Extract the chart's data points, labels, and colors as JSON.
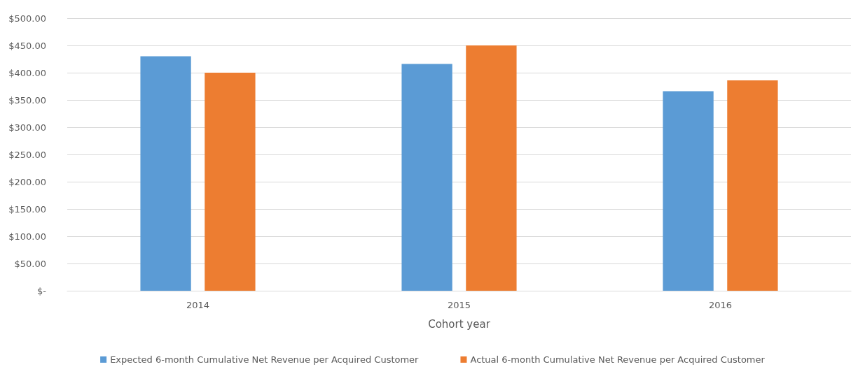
{
  "chart_data": {
    "type": "bar",
    "xlabel": "Cohort year",
    "categories": [
      "2014",
      "2015",
      "2016"
    ],
    "series": [
      {
        "name": "Expected 6-month Cumulative Net Revenue per Acquired Customer",
        "color": "#5b9bd5",
        "values": [
          430,
          416,
          366
        ]
      },
      {
        "name": "Actual 6-month Cumulative Net Revenue per Acquired Customer",
        "color": "#ed7d31",
        "values": [
          400,
          450,
          386
        ]
      }
    ],
    "ylim": [
      0,
      500
    ],
    "yticks": [
      {
        "value": 0,
        "label": "$-"
      },
      {
        "value": 50,
        "label": "$50.00"
      },
      {
        "value": 100,
        "label": "$100.00"
      },
      {
        "value": 150,
        "label": "$150.00"
      },
      {
        "value": 200,
        "label": "$200.00"
      },
      {
        "value": 250,
        "label": "$250.00"
      },
      {
        "value": 300,
        "label": "$300.00"
      },
      {
        "value": 350,
        "label": "$350.00"
      },
      {
        "value": 400,
        "label": "$400.00"
      },
      {
        "value": 450,
        "label": "$450.00"
      },
      {
        "value": 500,
        "label": "$500.00"
      }
    ],
    "grid": "y",
    "legend": "bottom"
  }
}
